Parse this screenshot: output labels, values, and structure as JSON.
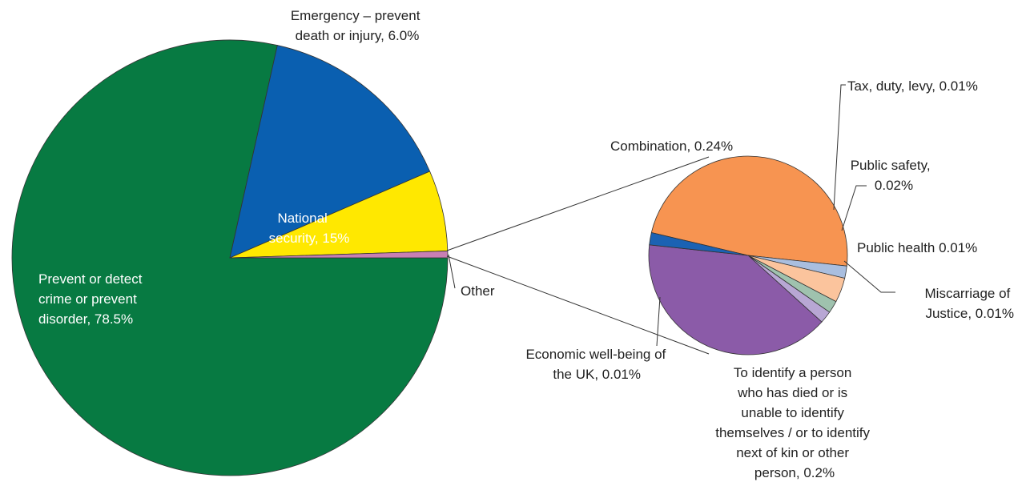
{
  "chart_data": [
    {
      "type": "pie",
      "title": "",
      "slices": [
        {
          "label": "Prevent or detect crime or prevent disorder, 78.5%",
          "value": 78.5,
          "color": "#077a42"
        },
        {
          "label": "National security, 15%",
          "value": 15,
          "color": "#0a5fb0"
        },
        {
          "label": "Emergency – prevent death or injury, 6.0%",
          "value": 6.0,
          "color": "#ffe800"
        },
        {
          "label": "Other",
          "value": 0.5,
          "color": "#c87fb4"
        }
      ]
    },
    {
      "type": "pie",
      "title": "",
      "slices": [
        {
          "label": "Combination, 0.24%",
          "value": 0.24,
          "color": "#f79451"
        },
        {
          "label": "Tax, duty, levy, 0.01%",
          "value": 0.01,
          "color": "#a9bedf"
        },
        {
          "label": "Public safety, 0.02%",
          "value": 0.02,
          "color": "#fbc49d"
        },
        {
          "label": "Public health 0.01%",
          "value": 0.01,
          "color": "#9fc2ae"
        },
        {
          "label": "Miscarriage of Justice, 0.01%",
          "value": 0.01,
          "color": "#b8a7d4"
        },
        {
          "label": "To identify a person who has died or is unable to identify themselves / or to identify next of kin or other person, 0.2%",
          "value": 0.2,
          "color": "#8b5ba8"
        },
        {
          "label": "Economic well-being of the UK, 0.01%",
          "value": 0.01,
          "color": "#1b62b3"
        }
      ]
    }
  ],
  "labels": {
    "crime": [
      "Prevent or detect",
      "crime or prevent",
      "disorder, 78.5%"
    ],
    "security": [
      "National",
      "security, 15%"
    ],
    "emergency": [
      "Emergency – prevent",
      "death or injury, 6.0%"
    ],
    "other": "Other",
    "combination": "Combination, 0.24%",
    "tax": "Tax, duty, levy, 0.01%",
    "safety": [
      "Public safety,",
      "0.02%"
    ],
    "health": "Public health 0.01%",
    "miscarriage": [
      "Miscarriage of",
      "Justice, 0.01%"
    ],
    "economic": [
      "Economic well-being of",
      "the UK, 0.01%"
    ],
    "identify": [
      "To identify a person",
      "who has died or is",
      "unable to identify",
      "themselves / or to identify",
      "next of kin or other",
      "person, 0.2%"
    ]
  }
}
